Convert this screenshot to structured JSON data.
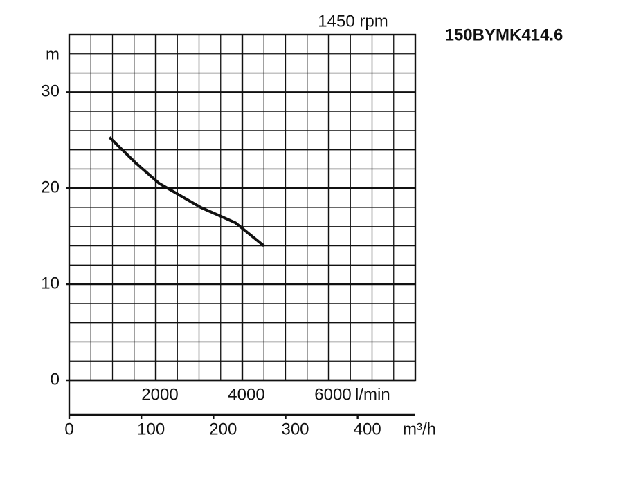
{
  "chart_data": {
    "type": "line",
    "title": "150BYMK414.6",
    "subtitle": "1450 rpm",
    "ylabel": "m",
    "xlabel": "l/min",
    "x2label": "m³/h",
    "xlim": [
      0,
      8000
    ],
    "xticks": [
      2000,
      4000,
      6000
    ],
    "xgrid": [
      0,
      500,
      1000,
      1500,
      2000,
      2500,
      3000,
      3500,
      4000,
      4500,
      5000,
      5500,
      6000,
      6500,
      7000,
      7500,
      8000
    ],
    "ylim": [
      0,
      36
    ],
    "yticks": [
      0,
      10,
      20,
      30
    ],
    "ygrid": [
      0,
      2,
      4,
      6,
      8,
      10,
      12,
      14,
      16,
      18,
      20,
      22,
      24,
      26,
      28,
      30,
      32,
      34,
      36
    ],
    "x2lim": [
      0,
      480
    ],
    "x2ticks": [
      0,
      100,
      200,
      300,
      400
    ],
    "series": [
      {
        "name": "150BYMK414.6",
        "color": "#111111",
        "x": [
          930,
          1520,
          2080,
          3040,
          3840,
          4500
        ],
        "values": [
          25.3,
          22.7,
          20.5,
          18.0,
          16.4,
          14.0
        ]
      }
    ]
  }
}
